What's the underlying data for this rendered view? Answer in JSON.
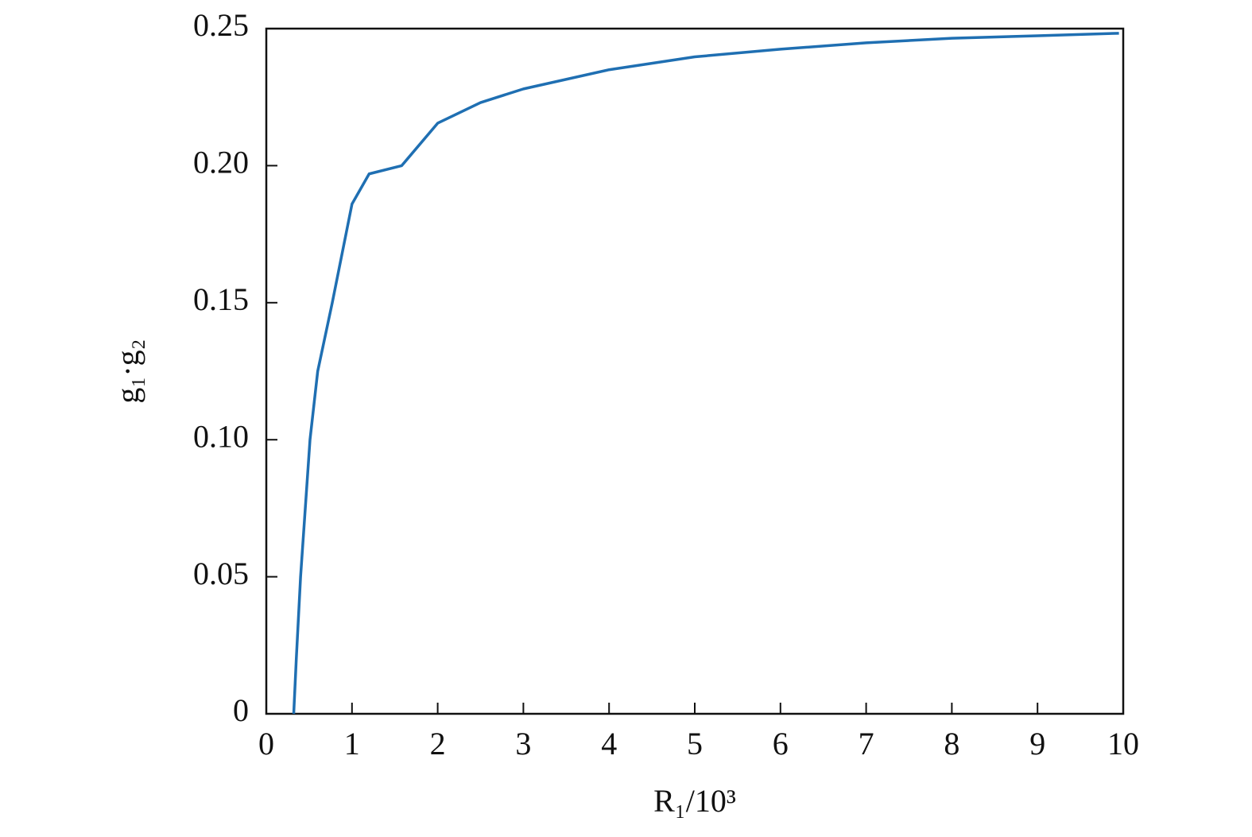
{
  "chart_data": {
    "type": "line",
    "x_label": "R₁/10³",
    "y_label": "g₁·g₂",
    "x": [
      0.32,
      0.35,
      0.4,
      0.51,
      0.6,
      0.77,
      1,
      1.2,
      1.58,
      2,
      2.5,
      3,
      4,
      5,
      6,
      7,
      8,
      9,
      9.95
    ],
    "series": [
      {
        "color": "#1f6fb2",
        "values": [
          0,
          0.02,
          0.05,
          0.1,
          0.125,
          0.15,
          0.186,
          0.197,
          0.2,
          0.2155,
          0.223,
          0.228,
          0.235,
          0.2397,
          0.2425,
          0.2448,
          0.2465,
          0.2474,
          0.2483
        ]
      }
    ],
    "xlim": [
      0,
      10
    ],
    "xticks": [
      0,
      1,
      2,
      3,
      4,
      5,
      6,
      7,
      8,
      9,
      10
    ],
    "ylim": [
      0,
      0.25
    ],
    "yticks": [
      0,
      0.05,
      {
        "value": 0.1,
        "label": "0.10"
      },
      0.15,
      {
        "value": 0.2,
        "label": "0.20"
      },
      0.25
    ]
  }
}
